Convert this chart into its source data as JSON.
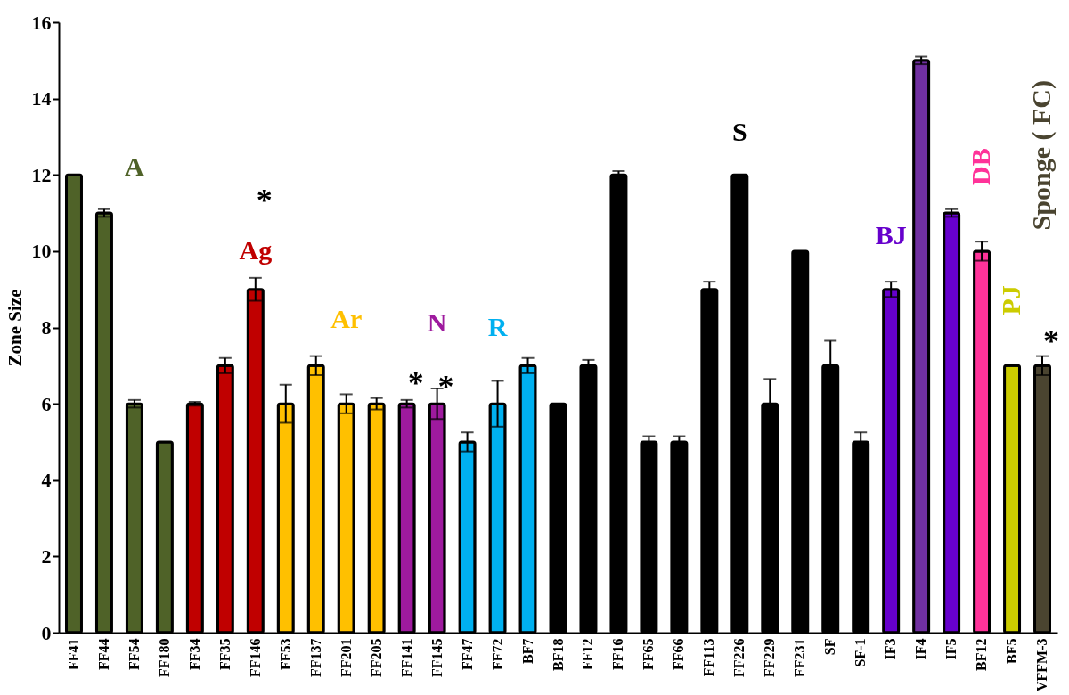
{
  "chart_data": {
    "type": "bar",
    "ylabel": "Zone Size",
    "categories": [
      "FF41",
      "FF44",
      "FF54",
      "FF180",
      "FF34",
      "FF35",
      "FF146",
      "FF53",
      "FF137",
      "FF201",
      "FF205",
      "FF141",
      "FF145",
      "FF47",
      "FF72",
      "BF7",
      "BF18",
      "FF12",
      "FF16",
      "FF65",
      "FF66",
      "FF113",
      "FF226",
      "FF229",
      "FF231",
      "SF",
      "SF-1",
      "IF3",
      "IF4",
      "IF5",
      "BF12",
      "BF5",
      "VFFM-3"
    ],
    "values": [
      12,
      11,
      6,
      5,
      6,
      7,
      9,
      6,
      7,
      6,
      6,
      6,
      6,
      5,
      6,
      7,
      6,
      7,
      12,
      5,
      5,
      9,
      12,
      6,
      10,
      7,
      5,
      9,
      15,
      11,
      10,
      7,
      7
    ],
    "errors": [
      null,
      0.1,
      0.1,
      null,
      0.05,
      0.2,
      0.3,
      0.5,
      0.25,
      0.25,
      0.15,
      0.1,
      0.4,
      0.25,
      0.6,
      0.2,
      null,
      0.15,
      0.1,
      0.15,
      0.15,
      0.2,
      null,
      0.65,
      null,
      0.65,
      0.25,
      0.2,
      0.1,
      0.1,
      0.25,
      null,
      0.25
    ],
    "colors": [
      "#4f6228",
      "#4f6228",
      "#4f6228",
      "#4f6228",
      "#c00000",
      "#c00000",
      "#c00000",
      "#ffc000",
      "#ffc000",
      "#ffc000",
      "#ffc000",
      "#9e1a9e",
      "#9e1a9e",
      "#00b0f0",
      "#00b0f0",
      "#00b0f0",
      "#000000",
      "#000000",
      "#000000",
      "#000000",
      "#000000",
      "#000000",
      "#000000",
      "#000000",
      "#000000",
      "#000000",
      "#000000",
      "#6600cc",
      "#7030a0",
      "#6600cc",
      "#ff3399",
      "#cccc00",
      "#4a4430"
    ],
    "ylim": [
      0,
      16
    ],
    "yticks": [
      0,
      2,
      4,
      6,
      8,
      10,
      12,
      14,
      16
    ],
    "grid": false,
    "annotations": [
      "A",
      "*",
      "Ag",
      "Ar",
      "N",
      "*",
      "*",
      "R",
      "S",
      "BJ",
      "DB",
      "PJ",
      "Sponge ( FC)",
      "*"
    ]
  }
}
